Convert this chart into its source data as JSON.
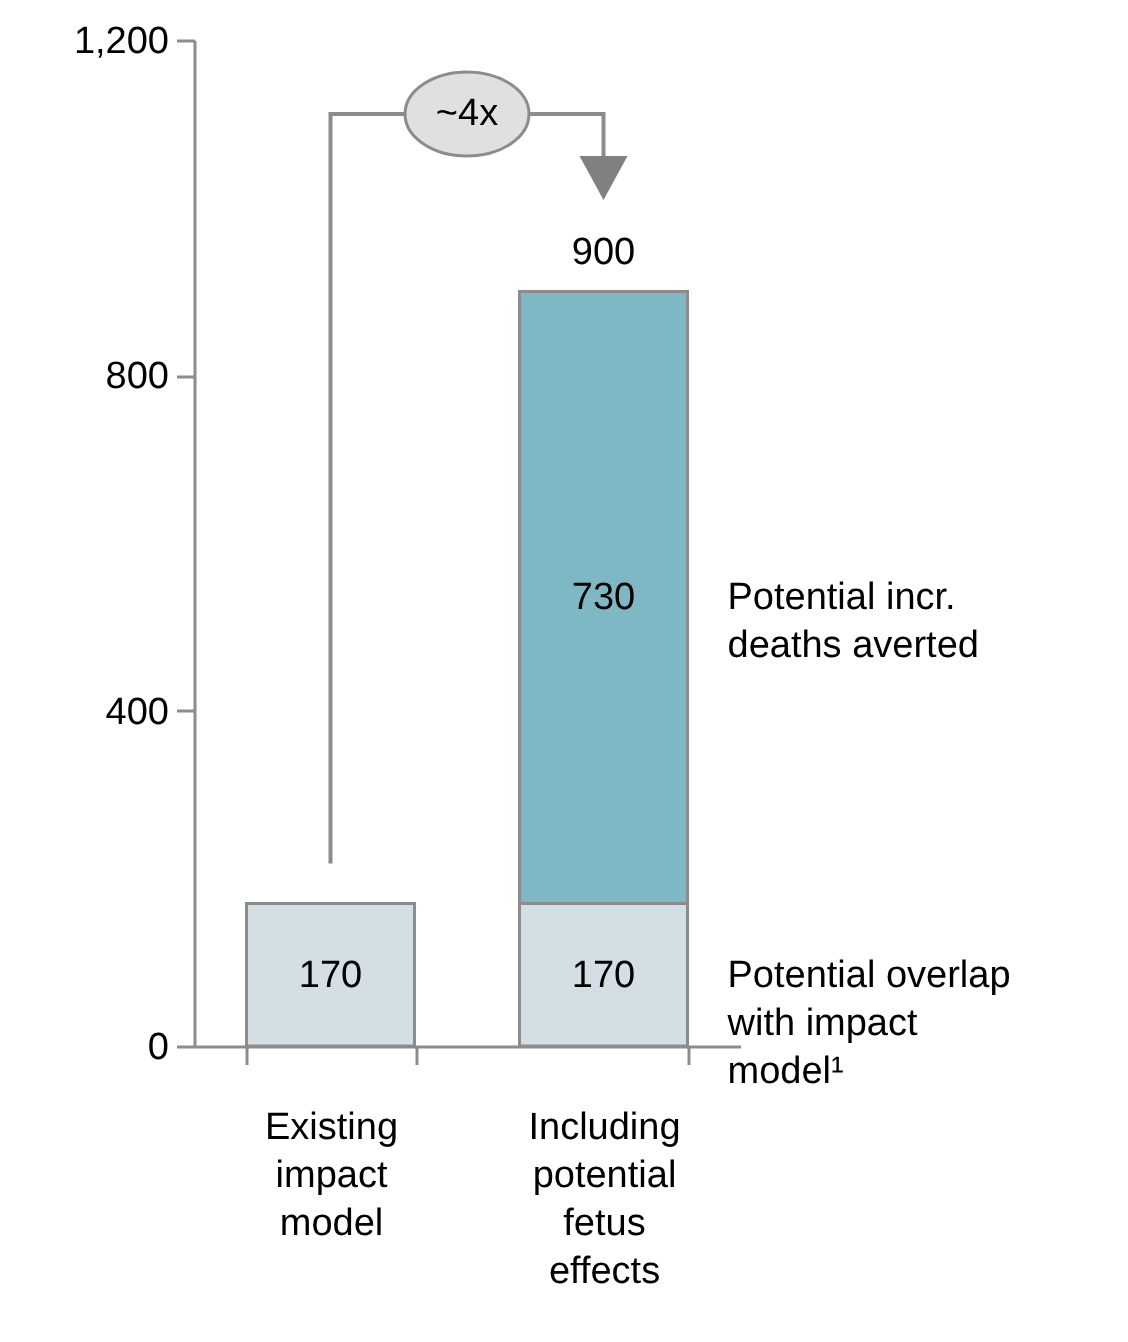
{
  "chart_data": {
    "type": "bar",
    "stacked": true,
    "categories": [
      "Existing impact model",
      "Including potential fetus effects"
    ],
    "series": [
      {
        "name": "Potential overlap with impact model¹",
        "color": "#d3dfe5",
        "values": [
          170,
          170
        ]
      },
      {
        "name": "Potential incr. deaths averted",
        "color": "#7fb8c5",
        "values": [
          null,
          730
        ]
      }
    ],
    "ylim": [
      0,
      1200
    ],
    "yticks": [
      0,
      400,
      800,
      {
        "value": 1200,
        "label": "1,200"
      }
    ],
    "data_labels": true,
    "totals": [
      null,
      "900"
    ],
    "grid": false,
    "legend": false,
    "annotations": [
      "~4x"
    ]
  }
}
